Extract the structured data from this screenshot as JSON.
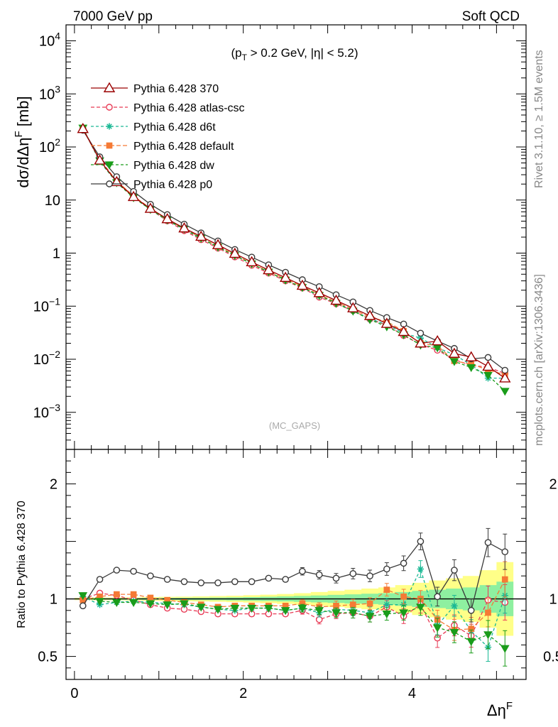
{
  "header": {
    "left": "7000 GeV pp",
    "right": "Soft QCD"
  },
  "side_labels": {
    "rivet": "Rivet 3.1.10, ≥ 1.5M events",
    "mcplots": "mcplots.cern.ch [arXiv:1306.3436]"
  },
  "watermark": "(MC_GAPS)",
  "chart_data": [
    {
      "type": "line",
      "panel": "main",
      "ylabel": "dσ/dΔη^F [mb]",
      "annotation": "(p_T > 0.2 GeV, |η| < 5.2)",
      "yscale": "log",
      "ylim": [
        0.0002,
        20000
      ],
      "xlim": [
        -0.1,
        5.35
      ],
      "yticks": [
        {
          "v": 10000,
          "m": "10",
          "e": "4"
        },
        {
          "v": 1000,
          "m": "10",
          "e": "3"
        },
        {
          "v": 100,
          "m": "10",
          "e": "2"
        },
        {
          "v": 10,
          "m": "10",
          "e": ""
        },
        {
          "v": 1,
          "m": "1",
          "e": ""
        },
        {
          "v": 0.1,
          "m": "10",
          "e": "−1"
        },
        {
          "v": 0.01,
          "m": "10",
          "e": "−2"
        },
        {
          "v": 0.001,
          "m": "10",
          "e": "−3"
        }
      ],
      "legend_position": "top-left",
      "x": [
        0.1,
        0.3,
        0.5,
        0.7,
        0.9,
        1.1,
        1.3,
        1.5,
        1.7,
        1.9,
        2.1,
        2.3,
        2.5,
        2.7,
        2.9,
        3.1,
        3.3,
        3.5,
        3.7,
        3.9,
        4.1,
        4.3,
        4.5,
        4.7,
        4.9,
        5.1
      ],
      "series": [
        {
          "name": "Pythia 6.428 370",
          "color": "#9b0000",
          "marker": "triangle-open",
          "dash": "",
          "values": [
            220,
            56,
            22,
            11.5,
            6.9,
            4.4,
            2.95,
            2.05,
            1.43,
            0.98,
            0.68,
            0.48,
            0.345,
            0.245,
            0.178,
            0.128,
            0.092,
            0.066,
            0.047,
            0.033,
            0.02,
            0.022,
            0.0128,
            0.011,
            0.0073,
            0.0044
          ]
        },
        {
          "name": "Pythia 6.428 atlas-csc",
          "color": "#e83a55",
          "marker": "circle-open",
          "dash": "5,3",
          "values": [
            222,
            59,
            22.5,
            11.7,
            6.6,
            4.05,
            2.65,
            1.79,
            1.24,
            0.85,
            0.59,
            0.42,
            0.3,
            0.22,
            0.148,
            0.111,
            0.082,
            0.057,
            0.044,
            0.028,
            0.019,
            0.0148,
            0.0099,
            0.0076,
            0.0071,
            0.0054
          ]
        },
        {
          "name": "Pythia 6.428 d6t",
          "color": "#1ab894",
          "marker": "star",
          "dash": "4,3",
          "values": [
            225,
            53,
            21.5,
            11.3,
            6.6,
            4.15,
            2.8,
            1.88,
            1.3,
            0.9,
            0.63,
            0.44,
            0.31,
            0.225,
            0.155,
            0.117,
            0.082,
            0.058,
            0.045,
            0.031,
            0.025,
            0.0165,
            0.0121,
            0.0079,
            0.0044,
            0.0044
          ]
        },
        {
          "name": "Pythia 6.428 default",
          "color": "#f57a35",
          "marker": "square",
          "dash": "6,3",
          "values": [
            218,
            57,
            22.8,
            11.9,
            6.95,
            4.35,
            2.85,
            1.95,
            1.33,
            0.93,
            0.64,
            0.45,
            0.325,
            0.235,
            0.165,
            0.12,
            0.087,
            0.062,
            0.051,
            0.034,
            0.02,
            0.018,
            0.0093,
            0.0081,
            0.0063,
            0.0051
          ]
        },
        {
          "name": "Pythia 6.428 dw",
          "color": "#1a9c1a",
          "marker": "triangle-down",
          "dash": "4,3",
          "values": [
            228,
            55,
            21.3,
            11.1,
            6.65,
            4.2,
            2.85,
            1.9,
            1.3,
            0.9,
            0.63,
            0.44,
            0.31,
            0.225,
            0.16,
            0.113,
            0.081,
            0.056,
            0.041,
            0.029,
            0.0185,
            0.0165,
            0.0091,
            0.007,
            0.005,
            0.0025
          ]
        },
        {
          "name": "Pythia 6.428 p0",
          "color": "#3a3a3a",
          "marker": "circle-open",
          "dash": "",
          "values": [
            207,
            65,
            27.5,
            14.5,
            8.3,
            5.3,
            3.5,
            2.4,
            1.69,
            1.17,
            0.84,
            0.6,
            0.435,
            0.315,
            0.233,
            0.164,
            0.12,
            0.083,
            0.061,
            0.046,
            0.031,
            0.022,
            0.016,
            0.0102,
            0.0108,
            0.0062
          ]
        }
      ]
    },
    {
      "type": "line",
      "panel": "ratio",
      "ylabel": "Ratio to Pythia 6.428 370",
      "xlabel": "Δη^F",
      "ylim": [
        0.3,
        2.3
      ],
      "xlim": [
        -0.1,
        5.35
      ],
      "yticks": [
        0.5,
        1,
        2
      ],
      "xticks": [
        0,
        2,
        4
      ],
      "x": [
        0.1,
        0.3,
        0.5,
        0.7,
        0.9,
        1.1,
        1.3,
        1.5,
        1.7,
        1.9,
        2.1,
        2.3,
        2.5,
        2.7,
        2.9,
        3.1,
        3.3,
        3.5,
        3.7,
        3.9,
        4.1,
        4.3,
        4.5,
        4.7,
        4.9,
        5.1
      ],
      "band_inner": [
        0.005,
        0.006,
        0.006,
        0.007,
        0.008,
        0.009,
        0.01,
        0.011,
        0.012,
        0.014,
        0.016,
        0.019,
        0.022,
        0.026,
        0.03,
        0.035,
        0.04,
        0.045,
        0.05,
        0.06,
        0.07,
        0.08,
        0.09,
        0.1,
        0.12,
        0.15
      ],
      "band_outer": [
        0.01,
        0.012,
        0.012,
        0.014,
        0.016,
        0.018,
        0.02,
        0.022,
        0.025,
        0.028,
        0.032,
        0.037,
        0.043,
        0.05,
        0.06,
        0.07,
        0.08,
        0.09,
        0.1,
        0.12,
        0.14,
        0.16,
        0.18,
        0.2,
        0.25,
        0.32
      ],
      "series": [
        {
          "name": "Pythia 6.428 atlas-csc",
          "color": "#e83a55",
          "marker": "circle-open",
          "dash": "5,3",
          "values": [
            1.0,
            1.05,
            1.03,
            0.99,
            0.95,
            0.92,
            0.91,
            0.89,
            0.87,
            0.87,
            0.87,
            0.87,
            0.87,
            0.9,
            0.82,
            0.87,
            0.88,
            0.85,
            0.93,
            0.85,
            0.95,
            0.66,
            0.77,
            0.68,
            0.99,
            0.97
          ]
        },
        {
          "name": "Pythia 6.428 d6t",
          "color": "#1ab894",
          "marker": "star",
          "dash": "4,3",
          "values": [
            1.02,
            0.95,
            0.97,
            0.98,
            0.97,
            0.96,
            0.95,
            0.93,
            0.91,
            0.9,
            0.92,
            0.92,
            0.9,
            0.92,
            0.88,
            0.91,
            0.9,
            0.88,
            0.95,
            0.95,
            1.26,
            0.77,
            0.94,
            0.72,
            0.58,
            1.03
          ]
        },
        {
          "name": "Pythia 6.428 default",
          "color": "#f57a35",
          "marker": "square",
          "dash": "6,3",
          "values": [
            0.99,
            1.02,
            1.04,
            1.04,
            1.01,
            0.99,
            0.97,
            0.95,
            0.93,
            0.94,
            0.94,
            0.94,
            0.94,
            0.96,
            0.93,
            0.94,
            0.95,
            0.96,
            1.08,
            1.02,
            1.0,
            0.82,
            0.73,
            0.74,
            0.88,
            1.17
          ]
        },
        {
          "name": "Pythia 6.428 dw",
          "color": "#1a9c1a",
          "marker": "triangle-down",
          "dash": "4,3",
          "values": [
            1.03,
            0.98,
            0.97,
            0.97,
            0.96,
            0.95,
            0.96,
            0.93,
            0.91,
            0.92,
            0.92,
            0.92,
            0.9,
            0.92,
            0.9,
            0.88,
            0.88,
            0.85,
            0.87,
            0.88,
            0.93,
            0.75,
            0.71,
            0.63,
            0.69,
            0.57
          ]
        },
        {
          "name": "Pythia 6.428 p0",
          "color": "#3a3a3a",
          "marker": "circle-open",
          "dash": "",
          "values": [
            0.94,
            1.17,
            1.25,
            1.24,
            1.2,
            1.17,
            1.15,
            1.14,
            1.14,
            1.15,
            1.15,
            1.18,
            1.17,
            1.24,
            1.21,
            1.18,
            1.22,
            1.2,
            1.26,
            1.31,
            1.5,
            1.02,
            1.25,
            0.9,
            1.49,
            1.41
          ]
        }
      ]
    }
  ]
}
